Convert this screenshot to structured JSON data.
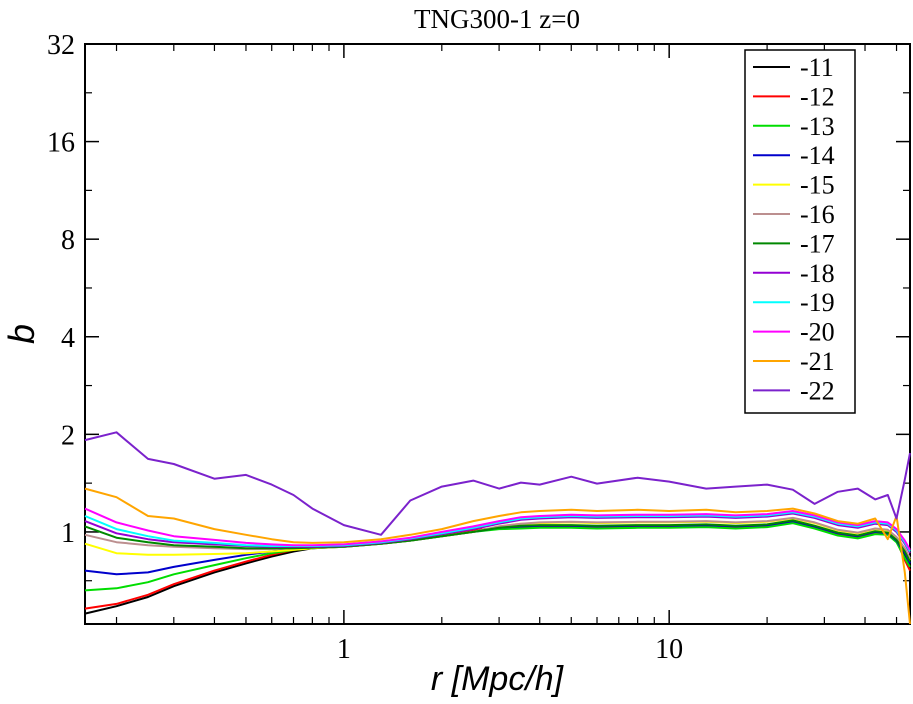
{
  "chart_data": {
    "type": "line",
    "title": "TNG300-1 z=0",
    "xlabel": "r [Mpc/h]",
    "ylabel": "b",
    "xscale": "log",
    "yscale": "log2",
    "xlim": [
      0.16,
      55
    ],
    "ylim": [
      0.52,
      32
    ],
    "xticks": [
      {
        "v": 1,
        "label": "1"
      },
      {
        "v": 10,
        "label": "10"
      }
    ],
    "yticks": [
      {
        "v": 1,
        "label": "1"
      },
      {
        "v": 2,
        "label": "2"
      },
      {
        "v": 4,
        "label": "4"
      },
      {
        "v": 8,
        "label": "8"
      },
      {
        "v": 16,
        "label": "16"
      },
      {
        "v": 32,
        "label": "32"
      }
    ],
    "legend_position": "top-right",
    "x": [
      0.16,
      0.2,
      0.25,
      0.3,
      0.4,
      0.5,
      0.6,
      0.7,
      0.8,
      1.0,
      1.3,
      1.6,
      2.0,
      2.5,
      3.0,
      3.5,
      4,
      5,
      6,
      8,
      10,
      13,
      16,
      20,
      24,
      28,
      33,
      38,
      43,
      47,
      50,
      53,
      55
    ],
    "series": [
      {
        "name": "-11",
        "color": "#000000",
        "values": [
          0.56,
          0.59,
          0.63,
          0.68,
          0.75,
          0.8,
          0.84,
          0.87,
          0.89,
          0.91,
          0.93,
          0.95,
          0.98,
          1.01,
          1.03,
          1.035,
          1.035,
          1.035,
          1.03,
          1.035,
          1.035,
          1.04,
          1.03,
          1.04,
          1.07,
          1.03,
          0.98,
          0.96,
          0.99,
          0.99,
          0.95,
          0.85,
          0.8
        ]
      },
      {
        "name": "-12",
        "color": "#ff0000",
        "values": [
          0.58,
          0.6,
          0.64,
          0.69,
          0.76,
          0.81,
          0.85,
          0.88,
          0.9,
          0.91,
          0.93,
          0.95,
          0.98,
          1.01,
          1.03,
          1.04,
          1.04,
          1.04,
          1.035,
          1.04,
          1.04,
          1.045,
          1.035,
          1.045,
          1.075,
          1.035,
          0.985,
          0.965,
          0.995,
          0.99,
          0.94,
          0.82,
          0.76
        ]
      },
      {
        "name": "-13",
        "color": "#00dd00",
        "values": [
          0.66,
          0.67,
          0.7,
          0.74,
          0.79,
          0.83,
          0.86,
          0.88,
          0.89,
          0.9,
          0.92,
          0.94,
          0.97,
          1.0,
          1.02,
          1.025,
          1.03,
          1.03,
          1.025,
          1.03,
          1.03,
          1.035,
          1.025,
          1.035,
          1.065,
          1.025,
          0.975,
          0.955,
          0.985,
          0.98,
          0.93,
          0.83,
          0.78
        ]
      },
      {
        "name": "-14",
        "color": "#0000cc",
        "values": [
          0.76,
          0.74,
          0.75,
          0.78,
          0.82,
          0.85,
          0.87,
          0.885,
          0.89,
          0.9,
          0.92,
          0.94,
          0.97,
          1.0,
          1.03,
          1.04,
          1.045,
          1.045,
          1.04,
          1.045,
          1.045,
          1.05,
          1.04,
          1.05,
          1.08,
          1.04,
          0.99,
          0.97,
          1.0,
          0.99,
          0.94,
          0.86,
          0.8
        ]
      },
      {
        "name": "-15",
        "color": "#ffff00",
        "values": [
          0.92,
          0.86,
          0.85,
          0.85,
          0.855,
          0.86,
          0.87,
          0.88,
          0.89,
          0.9,
          0.92,
          0.94,
          0.97,
          1.0,
          1.04,
          1.06,
          1.065,
          1.07,
          1.065,
          1.07,
          1.07,
          1.075,
          1.065,
          1.075,
          1.1,
          1.065,
          1.01,
          0.99,
          1.02,
          1.01,
          0.96,
          0.88,
          0.82
        ]
      },
      {
        "name": "-16",
        "color": "#bc8f8f",
        "values": [
          0.98,
          0.93,
          0.91,
          0.9,
          0.89,
          0.885,
          0.885,
          0.89,
          0.895,
          0.9,
          0.92,
          0.94,
          0.97,
          1.0,
          1.04,
          1.06,
          1.07,
          1.075,
          1.07,
          1.075,
          1.075,
          1.08,
          1.07,
          1.08,
          1.105,
          1.07,
          1.015,
          0.995,
          1.025,
          1.015,
          0.965,
          0.89,
          0.83
        ]
      },
      {
        "name": "-17",
        "color": "#008800",
        "values": [
          1.04,
          0.96,
          0.93,
          0.91,
          0.9,
          0.89,
          0.89,
          0.89,
          0.895,
          0.9,
          0.92,
          0.94,
          0.97,
          1.0,
          1.03,
          1.045,
          1.05,
          1.05,
          1.045,
          1.05,
          1.05,
          1.055,
          1.045,
          1.055,
          1.085,
          1.045,
          0.995,
          0.975,
          1.005,
          0.995,
          0.945,
          0.87,
          0.81
        ]
      },
      {
        "name": "-18",
        "color": "#9400d3",
        "values": [
          1.08,
          0.99,
          0.95,
          0.93,
          0.915,
          0.905,
          0.9,
          0.9,
          0.9,
          0.905,
          0.925,
          0.95,
          0.985,
          1.02,
          1.06,
          1.09,
          1.1,
          1.11,
          1.105,
          1.11,
          1.11,
          1.115,
          1.105,
          1.115,
          1.14,
          1.105,
          1.05,
          1.03,
          1.06,
          1.05,
          1.0,
          0.92,
          0.86
        ]
      },
      {
        "name": "-19",
        "color": "#00ffff",
        "values": [
          1.12,
          1.02,
          0.97,
          0.94,
          0.925,
          0.91,
          0.905,
          0.905,
          0.905,
          0.91,
          0.93,
          0.955,
          0.99,
          1.03,
          1.07,
          1.1,
          1.11,
          1.12,
          1.115,
          1.12,
          1.12,
          1.125,
          1.115,
          1.125,
          1.15,
          1.115,
          1.06,
          1.04,
          1.07,
          1.06,
          1.01,
          0.93,
          0.87
        ]
      },
      {
        "name": "-20",
        "color": "#ff00ff",
        "values": [
          1.18,
          1.07,
          1.01,
          0.97,
          0.945,
          0.925,
          0.915,
          0.91,
          0.91,
          0.915,
          0.935,
          0.96,
          1.0,
          1.04,
          1.08,
          1.11,
          1.12,
          1.13,
          1.125,
          1.13,
          1.13,
          1.135,
          1.125,
          1.135,
          1.16,
          1.125,
          1.07,
          1.05,
          1.08,
          1.07,
          1.02,
          0.94,
          0.88
        ]
      },
      {
        "name": "-21",
        "color": "#ffa500",
        "values": [
          1.36,
          1.28,
          1.12,
          1.1,
          1.02,
          0.98,
          0.95,
          0.93,
          0.925,
          0.93,
          0.95,
          0.98,
          1.02,
          1.08,
          1.12,
          1.15,
          1.16,
          1.17,
          1.16,
          1.17,
          1.16,
          1.17,
          1.15,
          1.16,
          1.18,
          1.14,
          1.08,
          1.06,
          1.1,
          0.95,
          1.12,
          0.75,
          0.52
        ]
      },
      {
        "name": "-22",
        "color": "#7b22cc",
        "values": [
          1.92,
          2.03,
          1.68,
          1.62,
          1.46,
          1.5,
          1.4,
          1.3,
          1.18,
          1.05,
          0.98,
          1.25,
          1.38,
          1.44,
          1.36,
          1.42,
          1.4,
          1.48,
          1.41,
          1.47,
          1.43,
          1.36,
          1.38,
          1.4,
          1.35,
          1.22,
          1.33,
          1.36,
          1.26,
          1.3,
          1.1,
          1.45,
          1.75
        ]
      }
    ]
  }
}
